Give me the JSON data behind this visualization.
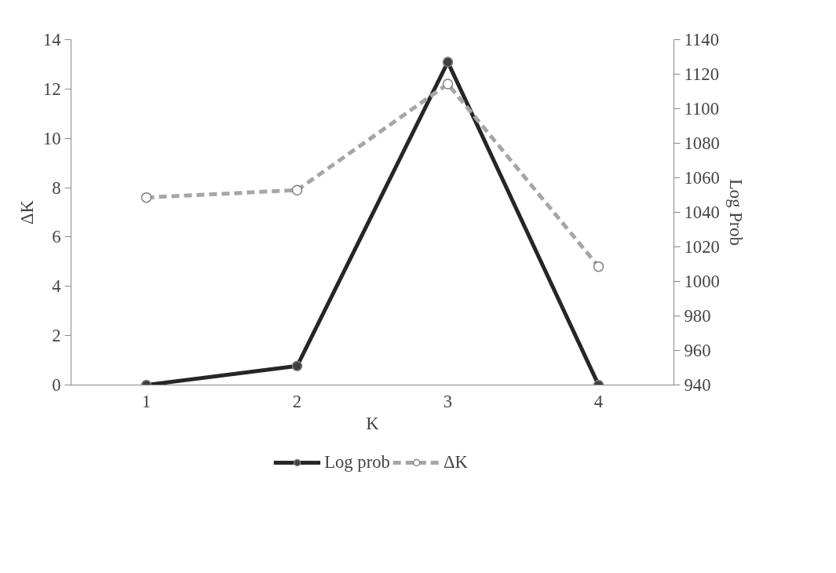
{
  "chart_data": {
    "type": "line",
    "xlabel": "K",
    "ylabel": "ΔK",
    "y2label": "Log Prob",
    "categories": [
      "1",
      "2",
      "3",
      "4"
    ],
    "ylim": [
      0,
      14
    ],
    "yticks": [
      0,
      2,
      4,
      6,
      8,
      10,
      12,
      14
    ],
    "y2lim": [
      940,
      1140
    ],
    "y2ticks": [
      940,
      960,
      980,
      1000,
      1020,
      1040,
      1060,
      1080,
      1100,
      1120,
      1140
    ],
    "series": [
      {
        "name": "Log prob",
        "color": "#262626",
        "axis": "y2",
        "line_style": "solid",
        "values": [
          940,
          951,
          1127,
          940
        ]
      },
      {
        "name": "ΔK",
        "color": "#a6a6a6",
        "axis": "y",
        "line_style": "dashed",
        "values": [
          7.6,
          7.9,
          12.2,
          4.8
        ]
      }
    ],
    "marker": "circle",
    "grid": false,
    "legend": "bottom"
  }
}
